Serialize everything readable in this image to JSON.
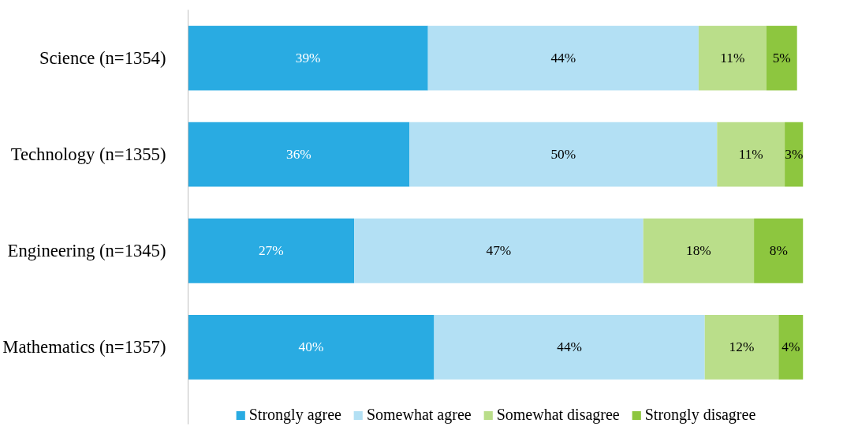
{
  "chart_data": {
    "type": "bar",
    "orientation": "horizontal",
    "stacked": true,
    "legend": "bottom",
    "tick_labels": "y",
    "categories": [
      "Science (n=1354)",
      "Technology (n=1355)",
      "Engineering (n=1345)",
      "Mathematics (n=1357)"
    ],
    "series": [
      {
        "name": "Strongly agree",
        "color": "#29abe2",
        "values": [
          39,
          36,
          27,
          40
        ],
        "value_labels": [
          "39%",
          "36%",
          "27%",
          "40%"
        ]
      },
      {
        "name": "Somewhat agree",
        "color": "#b3e0f4",
        "values": [
          44,
          50,
          47,
          44
        ],
        "value_labels": [
          "44%",
          "50%",
          "47%",
          "44%"
        ]
      },
      {
        "name": "Somewhat disagree",
        "color": "#bade8a",
        "values": [
          11,
          11,
          18,
          12
        ],
        "value_labels": [
          "11%",
          "11%",
          "18%",
          "12%"
        ]
      },
      {
        "name": "Strongly disagree",
        "color": "#8dc63f",
        "values": [
          5,
          3,
          8,
          4
        ],
        "value_labels": [
          "5%",
          "3%",
          "8%",
          "4%"
        ]
      }
    ]
  }
}
